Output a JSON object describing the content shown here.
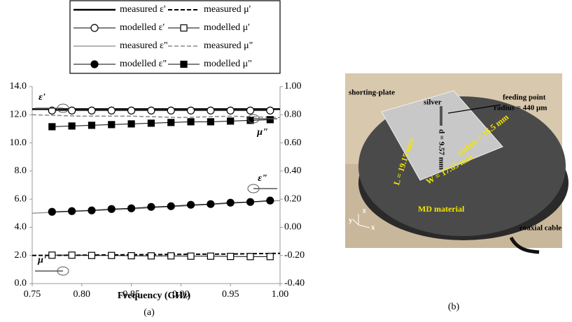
{
  "chart_data": {
    "type": "line",
    "xlabel": "Frequency (GHz)",
    "caption": "(a)",
    "xlim": [
      0.75,
      1.0
    ],
    "xticks": [
      0.75,
      {
        "value": 0.8,
        "label": "0.80"
      },
      0.85,
      {
        "value": 0.9,
        "label": "0.90"
      },
      0.95,
      {
        "value": 1.0,
        "label": "1.00"
      }
    ],
    "ylim": [
      0,
      14
    ],
    "yticks": [
      {
        "value": 0,
        "label": "0.0"
      },
      {
        "value": 2,
        "label": "2.0"
      },
      {
        "value": 4,
        "label": "4.0"
      },
      {
        "value": 6,
        "label": "6.0"
      },
      {
        "value": 8,
        "label": "8.0"
      },
      {
        "value": 10,
        "label": "10.0"
      },
      {
        "value": 12,
        "label": "12.0"
      },
      {
        "value": 14,
        "label": "14.0"
      }
    ],
    "y2lim": [
      -0.4,
      1.0
    ],
    "y2ticks": [
      {
        "value": -0.4,
        "label": "-0.40"
      },
      {
        "value": -0.2,
        "label": "-0.20"
      },
      {
        "value": 0,
        "label": "0.00"
      },
      {
        "value": 0.2,
        "label": "0.20"
      },
      {
        "value": 0.4,
        "label": "0.40"
      },
      {
        "value": 0.6,
        "label": "0.60"
      },
      {
        "value": 0.8,
        "label": "0.80"
      },
      {
        "value": 1.0,
        "label": "1.00"
      }
    ],
    "grid": false,
    "series": [
      {
        "name": "measured ε'",
        "color": "#000000",
        "width": 2.5,
        "dash": false,
        "marker": "none",
        "x": [
          0.75,
          0.8,
          0.85,
          0.9,
          0.95,
          1.0
        ],
        "values": [
          12.4,
          12.4,
          12.4,
          12.4,
          12.4,
          12.4
        ]
      },
      {
        "name": "measured μ'",
        "color": "#000000",
        "width": 2,
        "dash": true,
        "marker": "none",
        "x": [
          0.75,
          0.8,
          0.85,
          0.9,
          0.95,
          1.0
        ],
        "values": [
          2.0,
          2.02,
          2.05,
          2.08,
          2.1,
          2.15
        ]
      },
      {
        "name": "modelled ε'",
        "color": "#000000",
        "width": 1,
        "dash": false,
        "marker": "open-circle",
        "x": [
          0.77,
          0.79,
          0.81,
          0.83,
          0.85,
          0.87,
          0.89,
          0.91,
          0.93,
          0.95,
          0.97,
          0.99
        ],
        "values": [
          12.3,
          12.3,
          12.3,
          12.3,
          12.3,
          12.3,
          12.3,
          12.3,
          12.3,
          12.3,
          12.3,
          12.3
        ]
      },
      {
        "name": "modelled μ'",
        "color": "#000000",
        "width": 1,
        "dash": false,
        "marker": "open-square",
        "x": [
          0.77,
          0.79,
          0.81,
          0.83,
          0.85,
          0.87,
          0.89,
          0.91,
          0.93,
          0.95,
          0.97,
          0.99
        ],
        "values": [
          2.02,
          2.02,
          2.0,
          2.0,
          1.98,
          1.97,
          1.97,
          1.95,
          1.95,
          1.93,
          1.92,
          1.92
        ]
      },
      {
        "name": "measured ε\"",
        "color": "#888888",
        "width": 1.2,
        "dash": false,
        "marker": "none",
        "x": [
          0.75,
          0.8,
          0.85,
          0.9,
          0.95,
          1.0
        ],
        "values": [
          5.0,
          5.15,
          5.3,
          5.5,
          5.7,
          5.9
        ]
      },
      {
        "name": "measured μ\"",
        "color": "#888888",
        "width": 1.5,
        "dash": true,
        "marker": "none",
        "axis": "y2",
        "x": [
          0.75,
          0.8,
          0.85,
          0.9,
          0.95,
          1.0
        ],
        "values": [
          0.8,
          0.79,
          0.79,
          0.78,
          0.79,
          0.78
        ]
      },
      {
        "name": "modelled ε\"",
        "color": "#000000",
        "width": 1,
        "dash": false,
        "marker": "filled-circle",
        "x": [
          0.77,
          0.79,
          0.81,
          0.83,
          0.85,
          0.87,
          0.89,
          0.91,
          0.93,
          0.95,
          0.97,
          0.99
        ],
        "values": [
          5.1,
          5.15,
          5.2,
          5.3,
          5.35,
          5.45,
          5.5,
          5.6,
          5.65,
          5.75,
          5.8,
          5.9
        ]
      },
      {
        "name": "modelled μ\"",
        "color": "#000000",
        "width": 1,
        "dash": false,
        "marker": "filled-square",
        "axis": "y2",
        "x": [
          0.77,
          0.79,
          0.81,
          0.83,
          0.85,
          0.87,
          0.89,
          0.91,
          0.93,
          0.95,
          0.97,
          0.99
        ],
        "values": [
          0.715,
          0.72,
          0.725,
          0.73,
          0.735,
          0.74,
          0.745,
          0.75,
          0.75,
          0.755,
          0.76,
          0.765
        ]
      }
    ],
    "annotations": [
      "ε'",
      "μ\"",
      "ε\"",
      "μ'"
    ]
  },
  "photo": {
    "caption": "(b)",
    "labels": [
      "shorting-plate",
      "silver",
      "feeding point",
      "radius = 440 μm",
      "d = 9.57 mm",
      "radius = 16.5 mm",
      "L = 19.15 mm",
      "W = 17.65 mm",
      "MD material",
      "coaxial cable",
      "y",
      "z",
      "x"
    ]
  }
}
